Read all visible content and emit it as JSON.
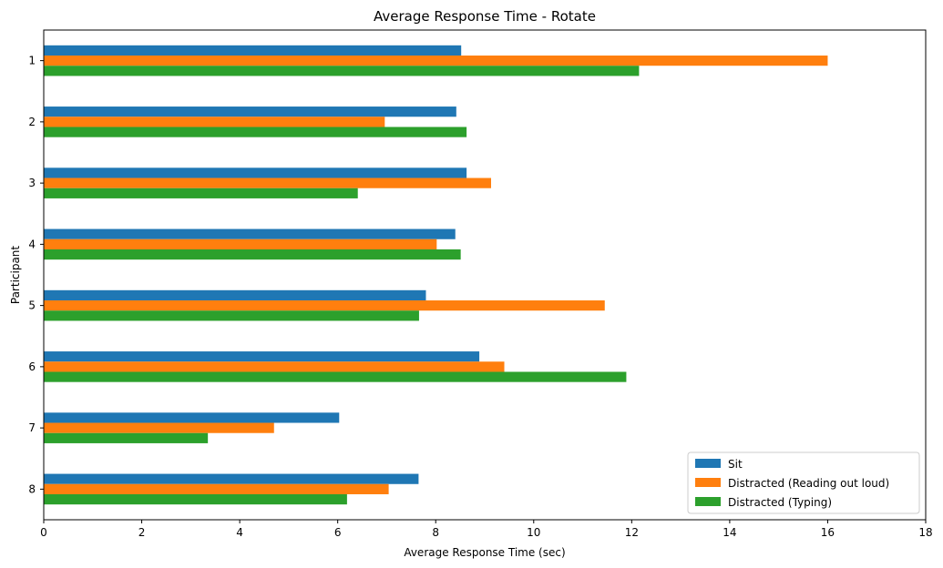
{
  "chart_data": {
    "type": "bar",
    "orientation": "horizontal",
    "title": "Average Response Time - Rotate",
    "xlabel": "Average Response Time (sec)",
    "ylabel": "Participant",
    "xlim": [
      0,
      18
    ],
    "xticks": [
      0,
      2,
      4,
      6,
      8,
      10,
      12,
      14,
      16,
      18
    ],
    "categories": [
      "1",
      "2",
      "3",
      "4",
      "5",
      "6",
      "7",
      "8"
    ],
    "grid": false,
    "legend_position": "lower-right",
    "series": [
      {
        "name": "Sit",
        "color": "#1f77b4",
        "values": [
          8.52,
          8.42,
          8.63,
          8.4,
          7.8,
          8.89,
          6.03,
          7.65
        ]
      },
      {
        "name": "Distracted (Reading out loud)",
        "color": "#ff7f0e",
        "values": [
          16.0,
          6.96,
          9.13,
          8.02,
          11.45,
          9.4,
          4.7,
          7.04
        ]
      },
      {
        "name": "Distracted (Typing)",
        "color": "#2ca02c",
        "values": [
          12.15,
          8.63,
          6.41,
          8.51,
          7.66,
          11.89,
          3.35,
          6.19
        ]
      }
    ]
  }
}
